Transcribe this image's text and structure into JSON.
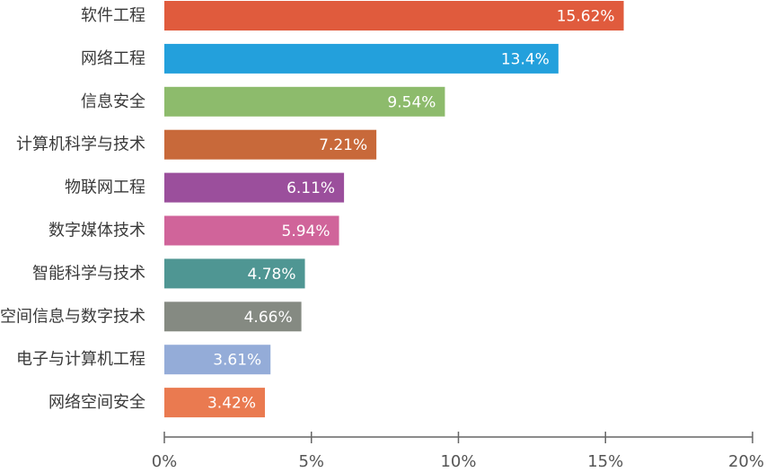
{
  "chart_data": {
    "type": "bar",
    "orientation": "horizontal",
    "categories": [
      "软件工程",
      "网络工程",
      "信息安全",
      "计算机科学与技术",
      "物联网工程",
      "数字媒体技术",
      "智能科学与技术",
      "空间信息与数字技术",
      "电子与计算机工程",
      "网络空间安全"
    ],
    "values": [
      15.62,
      13.4,
      9.54,
      7.21,
      6.11,
      5.94,
      4.78,
      4.66,
      3.61,
      3.42
    ],
    "value_labels": [
      "15.62%",
      "13.4%",
      "9.54%",
      "7.21%",
      "6.11%",
      "5.94%",
      "4.78%",
      "4.66%",
      "3.61%",
      "3.42%"
    ],
    "colors": [
      "#e05b3d",
      "#23a0dc",
      "#8dbb6c",
      "#c8693a",
      "#9b4f9c",
      "#d0649a",
      "#4f9693",
      "#858a82",
      "#94acd8",
      "#ea7a50"
    ],
    "xlim": [
      0,
      20
    ],
    "xticks": [
      0,
      5,
      10,
      15,
      20
    ],
    "xtick_labels": [
      "0%",
      "5%",
      "10%",
      "15%",
      "20%"
    ],
    "title": "",
    "xlabel": "",
    "ylabel": "",
    "grid": false,
    "legend": "none"
  }
}
